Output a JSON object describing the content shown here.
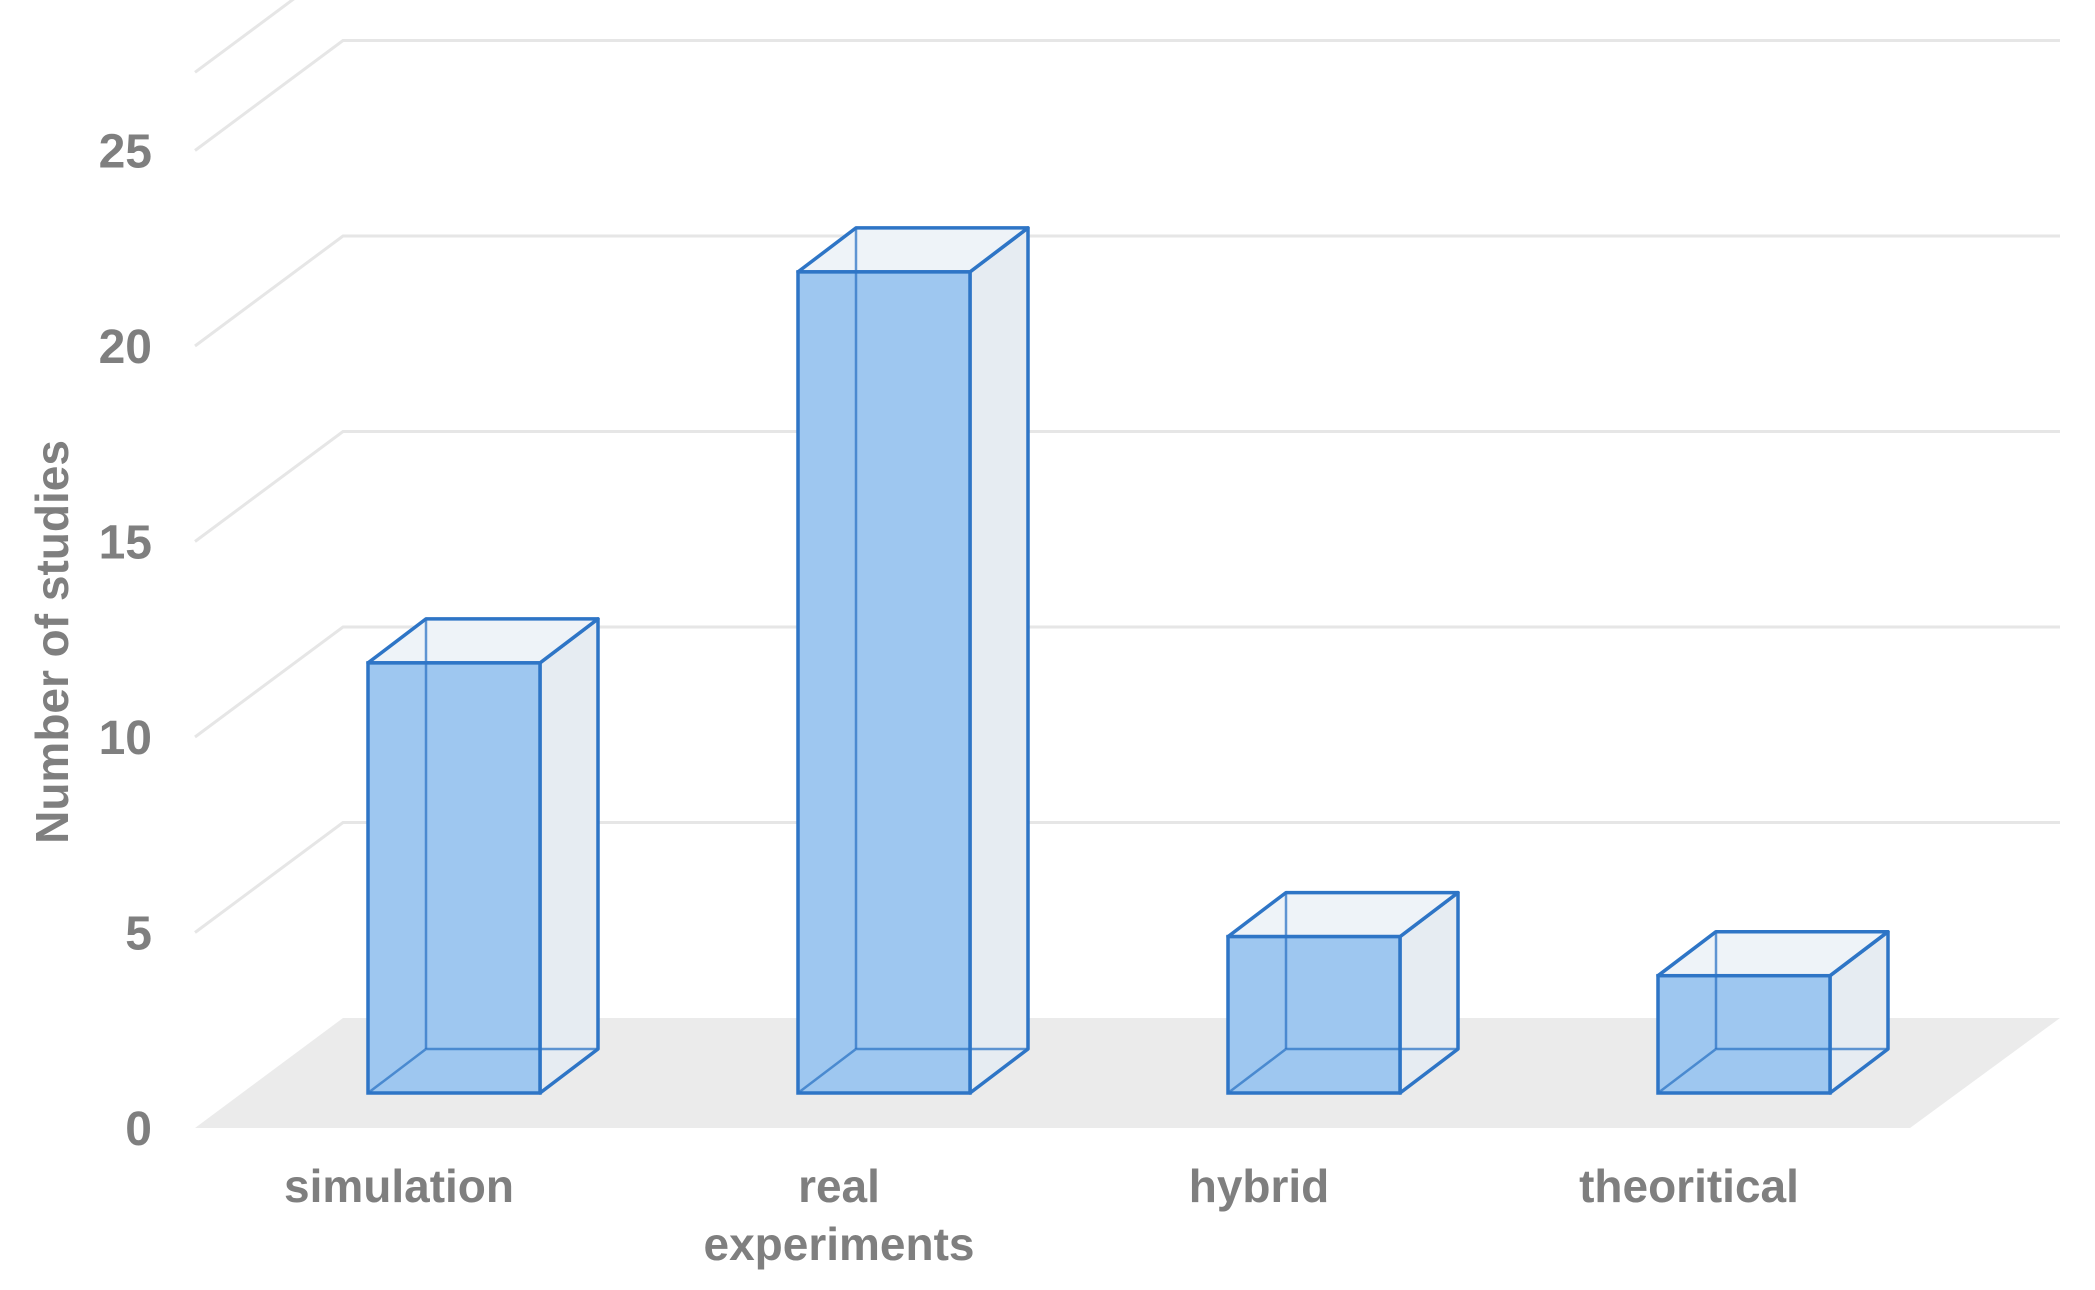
{
  "chart_data": {
    "type": "bar",
    "style": "3d-column",
    "title": "",
    "xlabel": "",
    "ylabel": "Number of studies",
    "categories": [
      "simulation",
      "real experiments",
      "hybrid",
      "theoritical"
    ],
    "category_lines": [
      [
        "simulation"
      ],
      [
        "real",
        "experiments"
      ],
      [
        "hybrid"
      ],
      [
        "theoritical"
      ]
    ],
    "values": [
      11,
      21,
      4,
      3
    ],
    "ylim": [
      0,
      27
    ],
    "yticks": [
      "0",
      "5",
      "10",
      "15",
      "20",
      "25"
    ],
    "grid": true,
    "legend": "none",
    "colors": {
      "bar_fill": "#9ec7f0",
      "bar_stroke": "#2e75c6",
      "side_fill": "#e6ecf2",
      "top_fill": "#eef3f8",
      "floor": "#ebebeb",
      "grid": "#e6e6e6",
      "text": "#7f7f7f"
    }
  }
}
